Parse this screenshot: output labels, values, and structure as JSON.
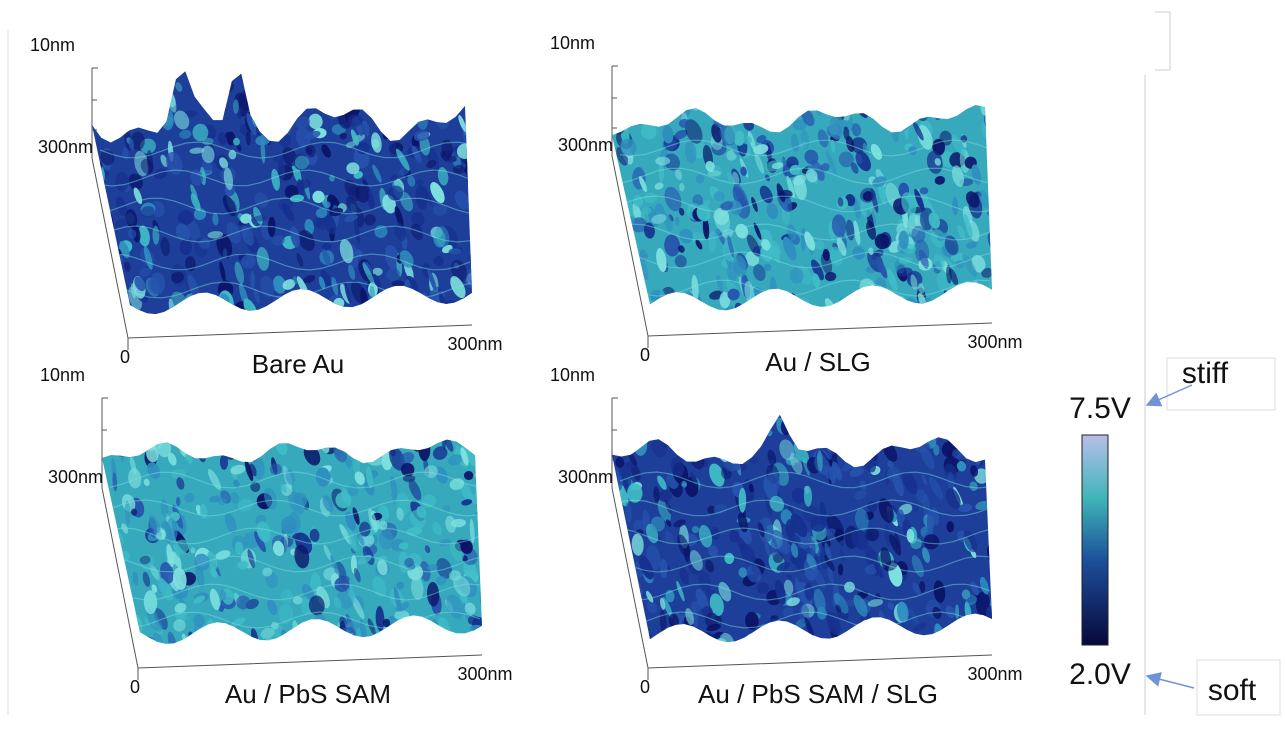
{
  "panels": [
    {
      "title": "Bare Au",
      "z_max": "10nm",
      "y_end": "300nm",
      "x_origin": "0",
      "x_end": "300nm"
    },
    {
      "title": "Au / SLG",
      "z_max": "10nm",
      "y_end": "300nm",
      "x_origin": "0",
      "x_end": "300nm"
    },
    {
      "title": "Au / PbS SAM",
      "z_max": "10nm",
      "y_end": "300nm",
      "x_origin": "0",
      "x_end": "300nm"
    },
    {
      "title": "Au / PbS SAM / SLG",
      "z_max": "10nm",
      "y_end": "300nm",
      "x_origin": "0",
      "x_end": "300nm"
    }
  ],
  "colorbar": {
    "max": "7.5V",
    "min": "2.0V",
    "high_label": "stiff",
    "low_label": "soft"
  }
}
